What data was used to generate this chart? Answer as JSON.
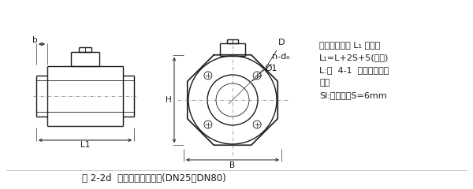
{
  "bg_color": "#ffffff",
  "line_color": "#1a1a1a",
  "caption": "图 2-2d  一体型电磁流量计(DN25～DN80)",
  "note_lines": [
    "注：仪表长度 L₁ 含衬里",
    "L₁=L+2S+5(允差)",
    "L:表  4-1  中仪表理论长",
    "度。",
    "Sl:接地环，S=6mm"
  ],
  "caption_fontsize": 8.5,
  "note_fontsize": 8.0,
  "lw_main": 1.0,
  "lw_thin": 0.6,
  "lw_dim": 0.7
}
